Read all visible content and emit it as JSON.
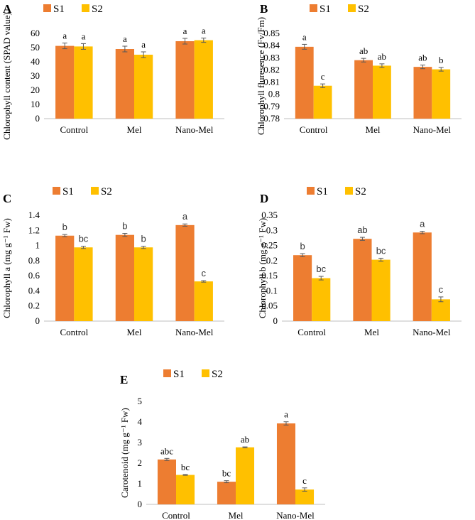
{
  "colors": {
    "S1": "#ED7D31",
    "S2": "#FFC000",
    "axis": "#BFBFBF",
    "error": "#595959"
  },
  "chart_data": [
    {
      "panel": "A",
      "type": "bar",
      "categories": [
        "Control",
        "Mel",
        "Nano-Mel"
      ],
      "series": [
        {
          "name": "S1",
          "values": [
            51.2,
            49.0,
            54.5
          ],
          "errors": [
            2.0,
            2.0,
            2.0
          ],
          "letters": [
            "a",
            "a",
            "a"
          ]
        },
        {
          "name": "S2",
          "values": [
            50.8,
            45.0,
            55.2
          ],
          "errors": [
            2.0,
            2.0,
            1.5
          ],
          "letters": [
            "a",
            "a",
            "a"
          ]
        }
      ],
      "ylabel": "Chlorophyll content (SPAD value)",
      "ylim": [
        0,
        60
      ],
      "ticks": [
        "0",
        "10",
        "20",
        "30",
        "40",
        "50",
        "60"
      ]
    },
    {
      "panel": "B",
      "type": "bar",
      "categories": [
        "Control",
        "Mel",
        "Nano-Mel"
      ],
      "series": [
        {
          "name": "S1",
          "values": [
            0.839,
            0.828,
            0.8225
          ],
          "errors": [
            0.002,
            0.0015,
            0.0015
          ],
          "letters": [
            "a",
            "ab",
            "ab"
          ]
        },
        {
          "name": "S2",
          "values": [
            0.807,
            0.8235,
            0.8205
          ],
          "errors": [
            0.0015,
            0.0015,
            0.0015
          ],
          "letters": [
            "c",
            "ab",
            "b"
          ]
        }
      ],
      "ylabel": "Chlorophyll fluresence (Fv/Fm)",
      "ylim": [
        0.78,
        0.85
      ],
      "ticks": [
        "0.78",
        "0.79",
        "0.8",
        "0.81",
        "0.82",
        "0.83",
        "0.84",
        "0.85"
      ]
    },
    {
      "panel": "C",
      "type": "bar",
      "categories": [
        "Control",
        "Mel",
        "Nano-Mel"
      ],
      "series": [
        {
          "name": "S1",
          "values": [
            1.13,
            1.14,
            1.27
          ],
          "errors": [
            0.015,
            0.02,
            0.015
          ],
          "letters": [
            "b",
            "b",
            "a"
          ]
        },
        {
          "name": "S2",
          "values": [
            0.975,
            0.975,
            0.525
          ],
          "errors": [
            0.015,
            0.015,
            0.01
          ],
          "letters": [
            "bc",
            "b",
            "c"
          ]
        }
      ],
      "ylabel": "Chlorophyll a (mg g⁻¹ Fw)",
      "ylim": [
        0,
        1.4
      ],
      "ticks": [
        "0",
        "0.2",
        "0.4",
        "0.6",
        "0.8",
        "1",
        "1.2",
        "1.4"
      ]
    },
    {
      "panel": "D",
      "type": "bar",
      "categories": [
        "Control",
        "Mel",
        "Nano-Mel"
      ],
      "series": [
        {
          "name": "S1",
          "values": [
            0.218,
            0.272,
            0.293
          ],
          "errors": [
            0.005,
            0.005,
            0.004
          ],
          "letters": [
            "b",
            "ab",
            "a"
          ]
        },
        {
          "name": "S2",
          "values": [
            0.142,
            0.203,
            0.072
          ],
          "errors": [
            0.006,
            0.005,
            0.008
          ],
          "letters": [
            "bc",
            "bc",
            "c"
          ]
        }
      ],
      "ylabel": "Chlorophyll b (mg g⁻¹ Fw)",
      "ylim": [
        0,
        0.35
      ],
      "ticks": [
        "0",
        "0.05",
        "0.1",
        "0.15",
        "0.2",
        "0.25",
        "0.3",
        "0.35"
      ]
    },
    {
      "panel": "E",
      "type": "bar",
      "categories": [
        "Control",
        "Mel",
        "Nano-Mel"
      ],
      "series": [
        {
          "name": "S1",
          "values": [
            2.18,
            1.1,
            3.93
          ],
          "errors": [
            0.05,
            0.05,
            0.08
          ],
          "letters": [
            "abc",
            "bc",
            "a"
          ]
        },
        {
          "name": "S2",
          "values": [
            1.43,
            2.77,
            0.72
          ],
          "errors": [
            0.02,
            0.02,
            0.08
          ],
          "letters": [
            "bc",
            "ab",
            "c"
          ]
        }
      ],
      "ylabel": "Carotenoid (mg g⁻¹ Fw)",
      "ylim": [
        0,
        5
      ],
      "ticks": [
        "0",
        "1",
        "2",
        "3",
        "4",
        "5"
      ]
    }
  ]
}
